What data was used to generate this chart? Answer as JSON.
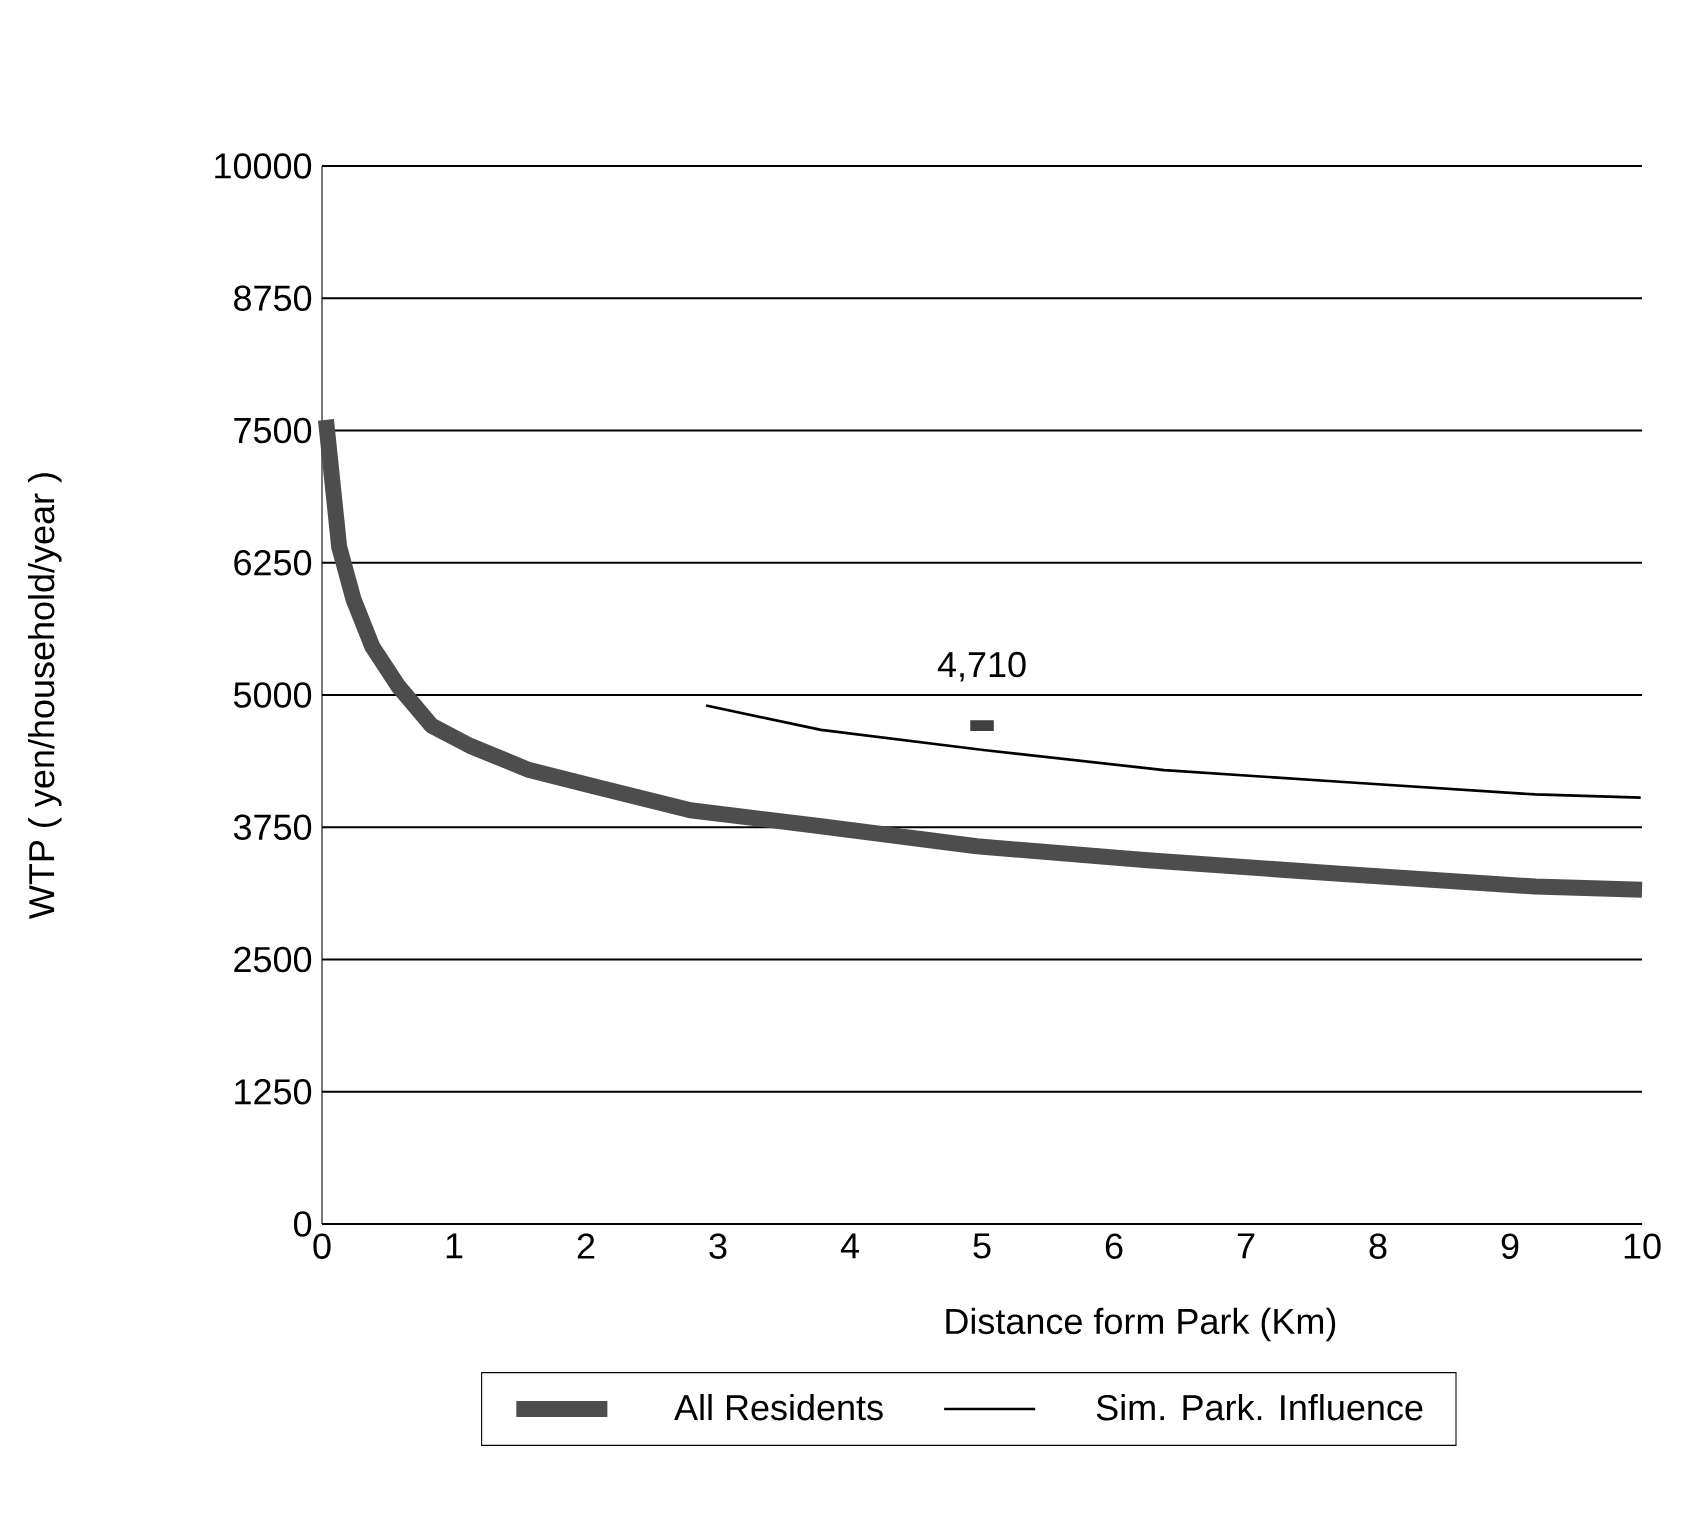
{
  "chart_data": {
    "type": "line",
    "xlabel": "Distance form Park (Km)",
    "ylabel": "WTP ( yen/household/year )",
    "xlim": [
      0,
      10
    ],
    "xticks": [
      0,
      1,
      2,
      3,
      4,
      5,
      6,
      7,
      8,
      9,
      10
    ],
    "ylim": [
      0,
      10000
    ],
    "yticks": [
      0,
      1250,
      2500,
      3750,
      5000,
      6250,
      7500,
      8750,
      10000
    ],
    "grid": "y",
    "legend": "bottom",
    "series": [
      {
        "name": "All Residents",
        "color": "#4d4d4d",
        "x": [
          0.03,
          0.13,
          0.24,
          0.38,
          0.58,
          0.83,
          1.12,
          1.57,
          2.05,
          2.79,
          3.78,
          4.96,
          6.23,
          7.71,
          9.19,
          10
        ],
        "values": [
          7600,
          6400,
          5900,
          5460,
          5080,
          4710,
          4520,
          4290,
          4140,
          3910,
          3760,
          3570,
          3440,
          3310,
          3190,
          3160
        ]
      },
      {
        "name": "Sim. Park. Influence",
        "color": "#000000",
        "x": [
          2.91,
          3.78,
          5.01,
          6.38,
          7.71,
          9.19,
          9.99
        ],
        "values": [
          4900,
          4670,
          4480,
          4290,
          4180,
          4060,
          4030
        ]
      },
      {
        "type": "scatter",
        "color": "#404040",
        "x": [
          5
        ],
        "values": [
          4710
        ],
        "value_labels": [
          "4,710"
        ]
      }
    ]
  }
}
